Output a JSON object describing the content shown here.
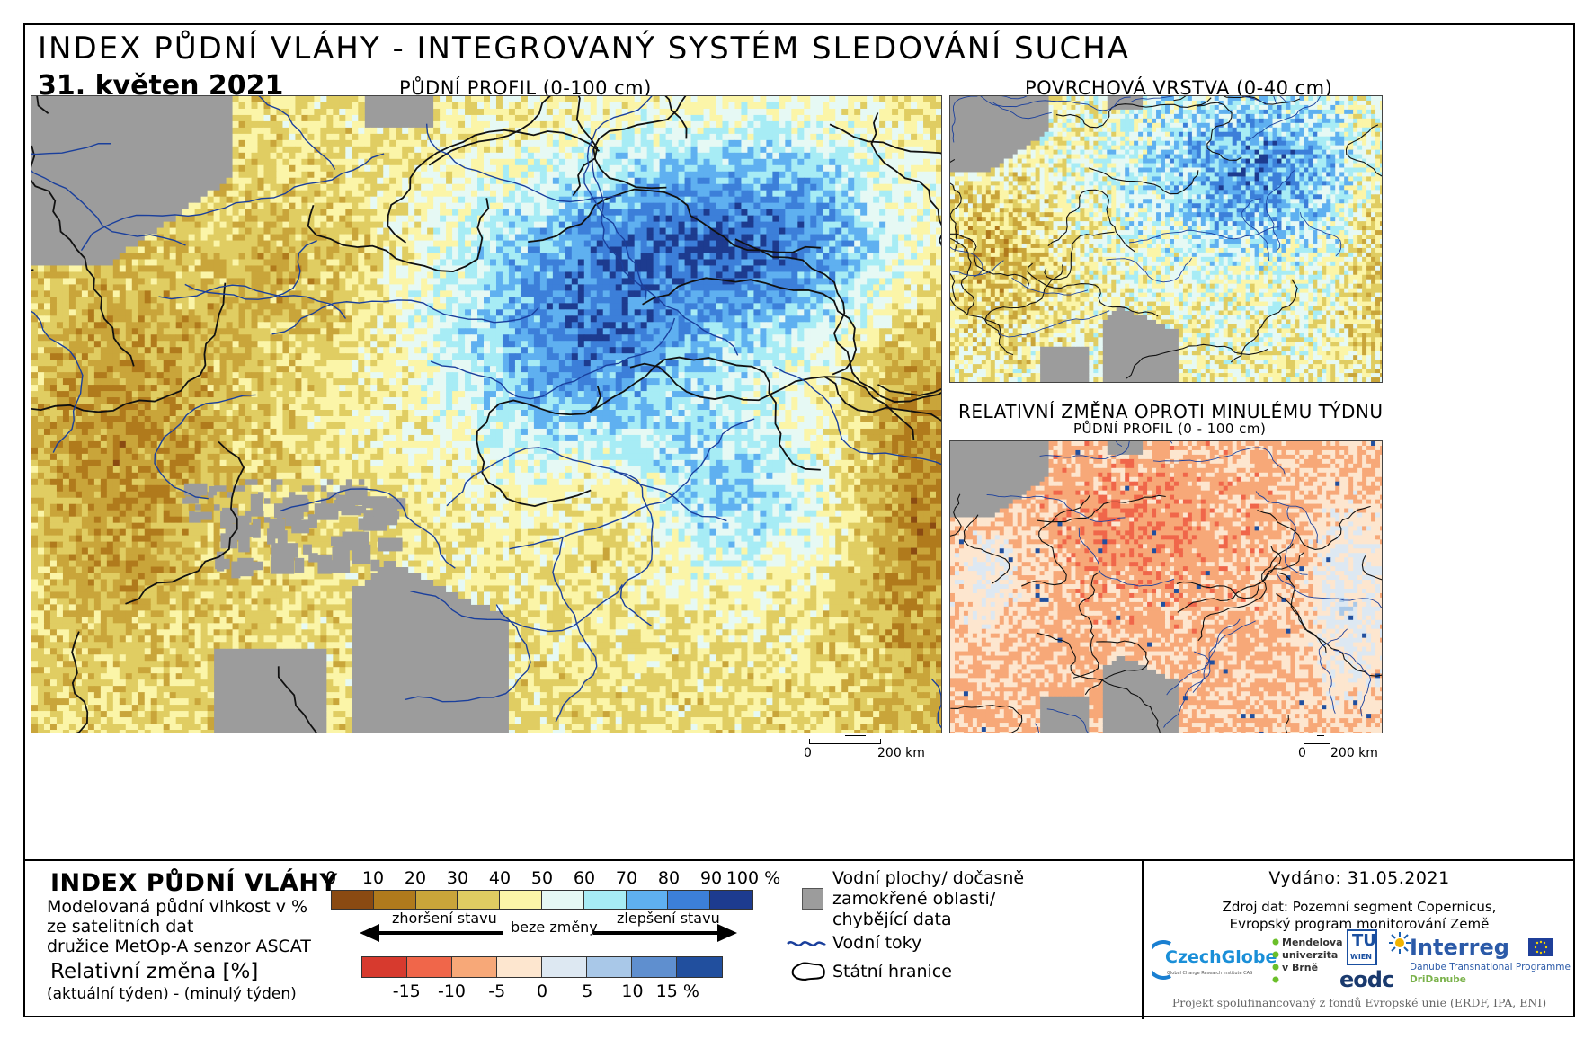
{
  "header": {
    "title": "INDEX PŮDNÍ VLÁHY - INTEGROVANÝ SYSTÉM SLEDOVÁNÍ SUCHA",
    "date": "31. květen 2021"
  },
  "maps": {
    "main_label": "PŮDNÍ PROFIL (0-100 cm)",
    "surface_label": "POVRCHOVÁ VRSTVA (0-40 cm)",
    "change_label": "RELATIVNÍ ZMĚNA OPROTI MINULÉMU TÝDNU",
    "change_sublabel": "PŮDNÍ PROFIL (0 - 100 cm)",
    "scale_zero": "0",
    "scale_main": "200 km",
    "scale_small": "200 km"
  },
  "legend": {
    "title": "INDEX PŮDNÍ VLÁHY",
    "desc_line1": "Modelovaná půdní vlhkost v %",
    "desc_line2": "ze satelitních dat",
    "desc_line3": "družice MetOp-A senzor ASCAT",
    "rel_title": "Relativní změna [%]",
    "rel_sub": "(aktuální týden) - (minulý týden)",
    "index_ticks": [
      "0",
      "10",
      "20",
      "30",
      "40",
      "50",
      "60",
      "70",
      "80",
      "90",
      "100 %"
    ],
    "index_colors": [
      "#8a4a12",
      "#b07a1c",
      "#c9a53a",
      "#e0cd62",
      "#fbf5a8",
      "#e6f9f4",
      "#a7ecf5",
      "#5fb0f0",
      "#3c7fd9",
      "#1d3b8f"
    ],
    "change_ticks": [
      "-15",
      "-10",
      "-5",
      "0",
      "5",
      "10",
      "15 %"
    ],
    "change_colors": [
      "#d73a2e",
      "#f0664a",
      "#f7a878",
      "#fde6cf",
      "#dde8f2",
      "#a9c8e8",
      "#5f8fcf",
      "#214f9e"
    ],
    "worse": "zhoršení stavu",
    "nochange": "beze změny",
    "better": "zlepšení stavu",
    "water_bodies": [
      "Vodní plochy/ dočasně",
      "zamokřené oblasti/",
      "chybějící data"
    ],
    "rivers": "Vodní toky",
    "borders": "Státní hranice"
  },
  "info": {
    "issued": "Vydáno: 31.05.2021",
    "source_line1": "Zdroj dat: Pozemní segment Copernicus,",
    "source_line2": "Evropský program monitorování Země",
    "funded": "Projekt spolufinancovaný z fondů Evropské unie (ERDF, IPA, ENI)"
  },
  "logos": {
    "czechglobe": "CzechGlobe",
    "czechglobe_sub": "Global Change Research Institute CAS",
    "mendelu": [
      "Mendelova",
      "univerzita",
      "v Brně"
    ],
    "tuwien": "TU",
    "tuwien_sub": "WIEN",
    "eodc": "eodc",
    "interreg": "Interreg",
    "interreg_sub1": "Danube Transnational Programme",
    "interreg_sub2": "DriDanube"
  }
}
